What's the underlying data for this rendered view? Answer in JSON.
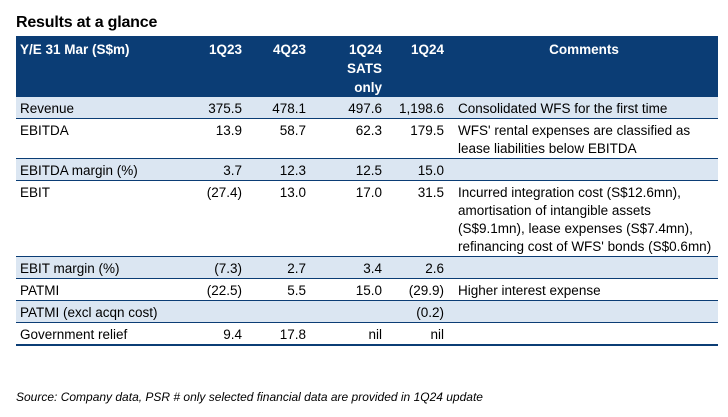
{
  "title": "Results at a glance",
  "table": {
    "headers": {
      "label": "Y/E 31 Mar (S$m)",
      "q1_23": "1Q23",
      "q4_23": "4Q23",
      "q1_24_sats": "1Q24",
      "q1_24_sats_sub": "SATS only",
      "q1_24": "1Q24",
      "comments": "Comments"
    },
    "rows": [
      {
        "label": "Revenue",
        "q1_23": "375.5",
        "q4_23": "478.1",
        "q1_24_sats": "497.6",
        "q1_24": "1,198.6",
        "comment": "Consolidated WFS for the first time"
      },
      {
        "label": "EBITDA",
        "q1_23": "13.9",
        "q4_23": "58.7",
        "q1_24_sats": "62.3",
        "q1_24": "179.5",
        "comment": " WFS' rental expenses are classified as lease liabilities below EBITDA"
      },
      {
        "label": "EBITDA margin (%)",
        "q1_23": "3.7",
        "q4_23": "12.3",
        "q1_24_sats": "12.5",
        "q1_24": "15.0",
        "comment": ""
      },
      {
        "label": "EBIT",
        "q1_23": "(27.4)",
        "q4_23": "13.0",
        "q1_24_sats": "17.0",
        "q1_24": "31.5",
        "comment": " Incurred integration cost (S$12.6mn), amortisation of intangible assets (S$9.1mn), lease expenses (S$7.4mn), refinancing cost of WFS' bonds (S$0.6mn)"
      },
      {
        "label": "EBIT margin (%)",
        "q1_23": "(7.3)",
        "q4_23": "2.7",
        "q1_24_sats": "3.4",
        "q1_24": "2.6",
        "comment": ""
      },
      {
        "label": "PATMI",
        "q1_23": "(22.5)",
        "q4_23": "5.5",
        "q1_24_sats": "15.0",
        "q1_24": "(29.9)",
        "comment": "Higher interest expense"
      },
      {
        "label": "PATMI (excl acqn cost)",
        "q1_23": "",
        "q4_23": "",
        "q1_24_sats": "",
        "q1_24": "(0.2)",
        "comment": ""
      },
      {
        "label": "Government relief",
        "q1_23": "9.4",
        "q4_23": "17.8",
        "q1_24_sats": "nil",
        "q1_24": "nil",
        "comment": ""
      }
    ]
  },
  "source": "Source: Company data, PSR # only selected financial data are provided in 1Q24 update"
}
